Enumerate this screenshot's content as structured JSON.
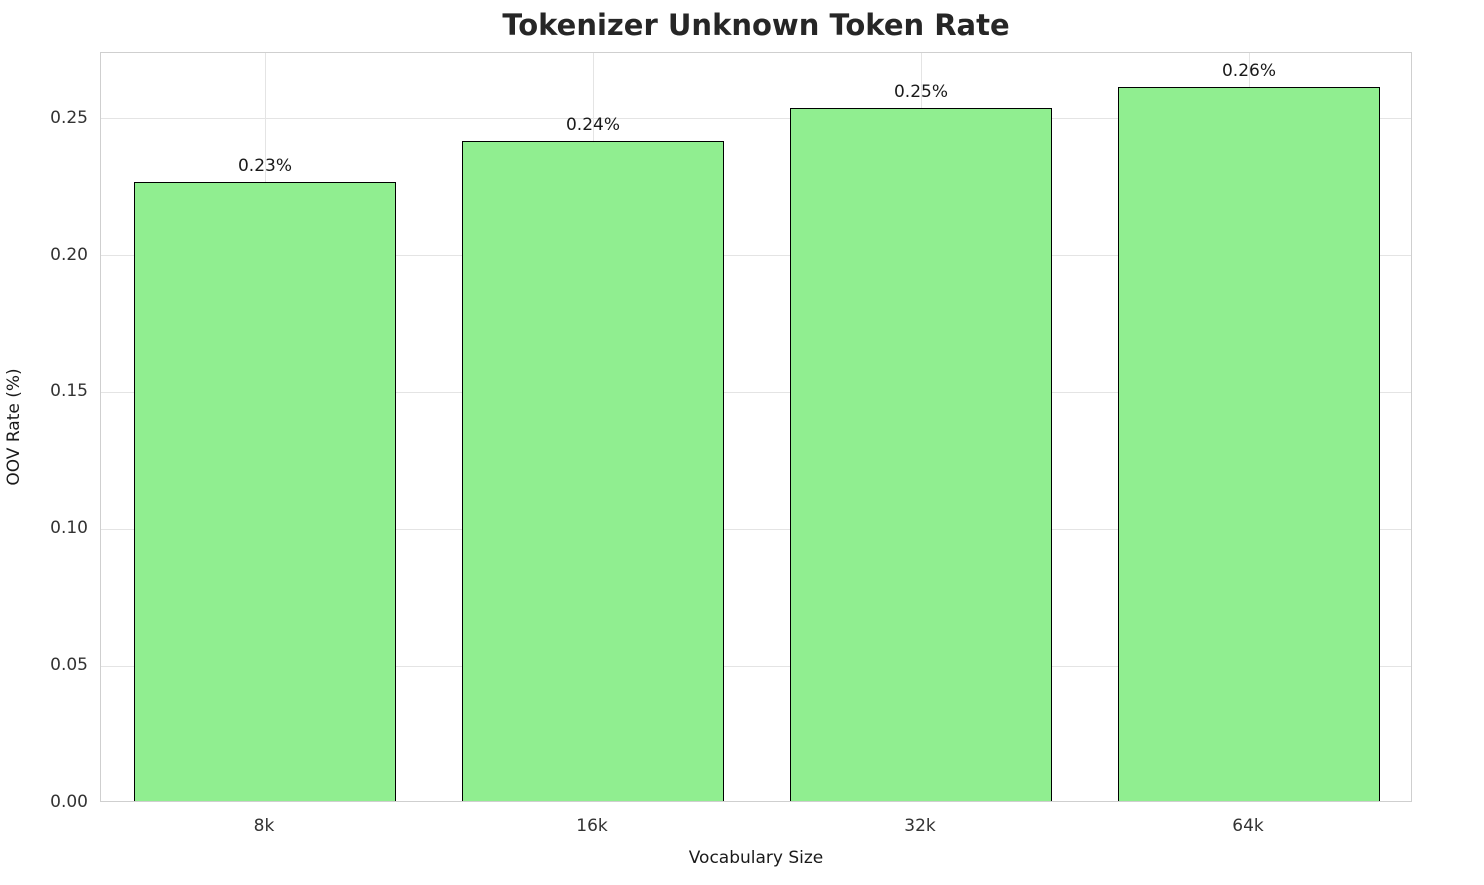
{
  "chart_data": {
    "type": "bar",
    "title": "Tokenizer Unknown Token Rate",
    "xlabel": "Vocabulary Size",
    "ylabel": "OOV Rate (%)",
    "categories": [
      "8k",
      "16k",
      "32k",
      "64k"
    ],
    "values": [
      0.226,
      0.241,
      0.253,
      0.261
    ],
    "value_labels": [
      "0.23%",
      "0.24%",
      "0.25%",
      "0.26%"
    ],
    "ylim": [
      0,
      0.274
    ],
    "yticks": [
      0.0,
      0.05,
      0.1,
      0.15,
      0.2,
      0.25
    ],
    "ytick_labels": [
      "0.00",
      "0.05",
      "0.10",
      "0.15",
      "0.20",
      "0.25"
    ],
    "grid": true,
    "legend_position": "none",
    "bar_color": "#90EE90",
    "bar_edge_color": "#000000",
    "bar_width_fraction": 0.8
  }
}
